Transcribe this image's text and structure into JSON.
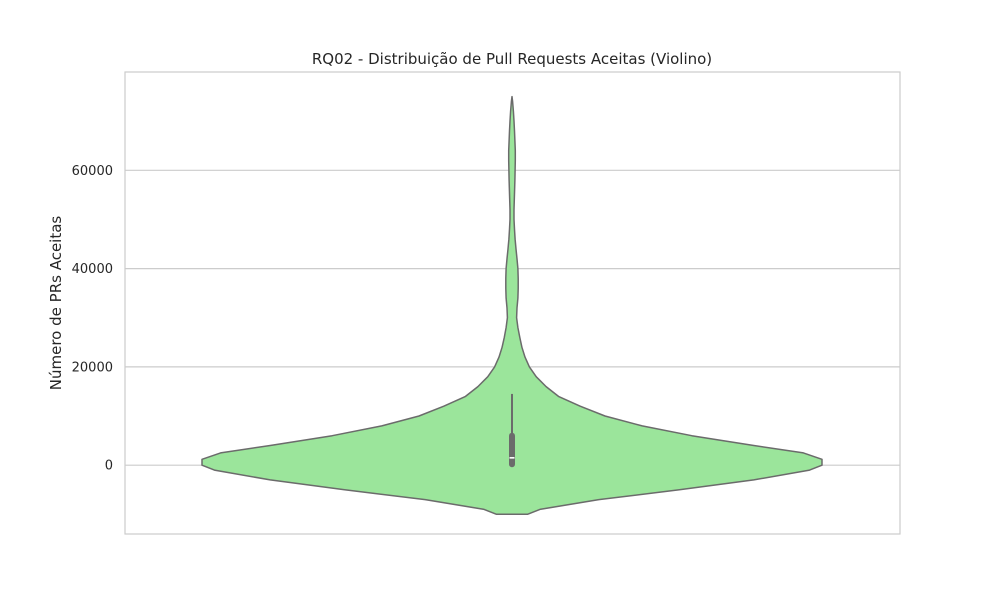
{
  "chart_data": {
    "type": "violin",
    "title": "RQ02 - Distribuição de Pull Requests Aceitas (Violino)",
    "xlabel": "",
    "ylabel": "Número de PRs Aceitas",
    "ylim": [
      -14000,
      80000
    ],
    "yticks": [
      0,
      20000,
      40000,
      60000
    ],
    "ytick_labels": [
      "0",
      "20000",
      "40000",
      "60000"
    ],
    "grid": "horizontal",
    "fill_color": "#9be59b",
    "line_color": "#6b6b6b",
    "density_profile": {
      "y": [
        -10000,
        -9000,
        -7000,
        -5000,
        -3000,
        -1000,
        0,
        1200,
        2500,
        4000,
        6000,
        8000,
        10000,
        12000,
        14000,
        16000,
        18000,
        20000,
        22000,
        24000,
        26000,
        28000,
        30000,
        32000,
        34000,
        36000,
        38000,
        40000,
        42000,
        44000,
        46000,
        48000,
        50000,
        52000,
        54000,
        56000,
        58000,
        60000,
        62000,
        64000,
        66000,
        68000,
        70000,
        72000,
        74000,
        75000
      ],
      "half_width": [
        0.05,
        0.09,
        0.28,
        0.54,
        0.78,
        0.96,
        1.0,
        1.0,
        0.94,
        0.78,
        0.58,
        0.42,
        0.3,
        0.22,
        0.15,
        0.11,
        0.078,
        0.056,
        0.042,
        0.032,
        0.025,
        0.019,
        0.015,
        0.016,
        0.019,
        0.02,
        0.02,
        0.019,
        0.016,
        0.013,
        0.01,
        0.008,
        0.0065,
        0.0065,
        0.0075,
        0.0085,
        0.0095,
        0.01,
        0.0105,
        0.0105,
        0.0095,
        0.008,
        0.0065,
        0.0045,
        0.002,
        0.0
      ]
    },
    "box": {
      "min": 0,
      "q1": 200,
      "median": 1500,
      "q3": 6000,
      "whisker_high": 14500
    }
  }
}
